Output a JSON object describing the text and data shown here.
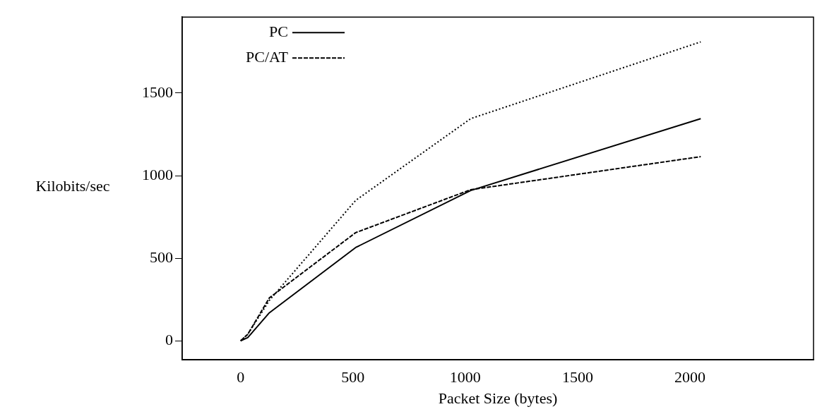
{
  "chart_data": {
    "type": "line",
    "xlabel": "Packet Size (bytes)",
    "ylabel": "Kilobits/sec",
    "xlim": [
      -260,
      2550
    ],
    "ylim": [
      -115,
      1960
    ],
    "xticks": [
      0,
      500,
      1000,
      1500,
      2000
    ],
    "yticks": [
      0,
      500,
      1000,
      1500
    ],
    "grid": false,
    "legend": "top left",
    "marker": "none",
    "series": [
      {
        "name": "PC",
        "color": "#000000",
        "line_style": "solid",
        "x": [
          0,
          32,
          128,
          512,
          1024,
          2048
        ],
        "values": [
          0,
          20,
          170,
          565,
          910,
          1345
        ]
      },
      {
        "name": "PC/AT",
        "color": "#000000",
        "line_style": "dashed",
        "x": [
          0,
          32,
          128,
          512,
          1024,
          2048
        ],
        "values": [
          0,
          40,
          260,
          655,
          915,
          1115
        ]
      },
      {
        "color": "#000000",
        "line_style": "dotted",
        "x": [
          0,
          32,
          128,
          512,
          1024,
          2048
        ],
        "values": [
          0,
          40,
          245,
          850,
          1345,
          1810
        ]
      }
    ]
  }
}
